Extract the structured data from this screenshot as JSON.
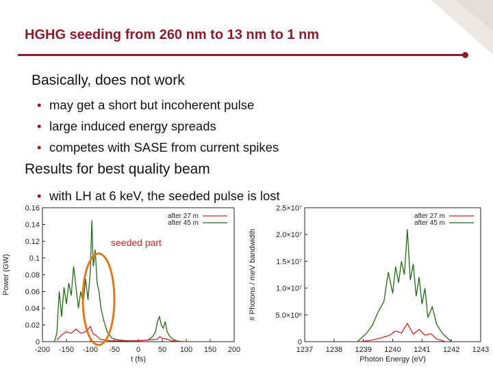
{
  "slide": {
    "title": "HGHG seeding from 260 nm to 13 nm to 1 nm",
    "heading1": "Basically, does not work",
    "bullets1": [
      "may get a short but incoherent pulse",
      "large induced energy spreads",
      "competes with SASE from current spikes"
    ],
    "heading2": "Results for best quality beam",
    "bullets2": [
      "with LH at 6 keV, the seeded pulse is lost"
    ]
  },
  "colors": {
    "accent": "#8b1a2b",
    "series_red": "#d62020",
    "series_green": "#1f6b12",
    "highlight": "#e07820"
  },
  "chart_data": [
    {
      "type": "line",
      "xlabel": "t (fs)",
      "ylabel": "Power (GW)",
      "xlim": [
        -200,
        200
      ],
      "ylim": [
        0,
        0.16
      ],
      "xticks": [
        "-200",
        "-150",
        "-100",
        "-50",
        "0",
        "50",
        "100",
        "150",
        "200"
      ],
      "yticks": [
        "0",
        "0.02",
        "0.04",
        "0.06",
        "0.08",
        "0.1",
        "0.12",
        "0.14",
        "0.16"
      ],
      "legend_position": "top-right",
      "annotation": "seeded part",
      "series": [
        {
          "name": "after 27 m",
          "color": "#d62020",
          "x": [
            -170,
            -160,
            -150,
            -140,
            -130,
            -120,
            -110,
            -100,
            -95,
            -90,
            -85,
            -80,
            -60,
            0,
            40,
            45,
            50,
            60,
            70,
            100
          ],
          "y": [
            0.002,
            0.008,
            0.012,
            0.01,
            0.015,
            0.01,
            0.012,
            0.018,
            0.01,
            0.008,
            0.006,
            0.003,
            0.001,
            0.001,
            0.003,
            0.006,
            0.004,
            0.003,
            0.001,
            0.0
          ]
        },
        {
          "name": "after 45 m",
          "color": "#1f6b12",
          "x": [
            -175,
            -170,
            -165,
            -160,
            -155,
            -150,
            -145,
            -140,
            -135,
            -130,
            -125,
            -120,
            -115,
            -110,
            -105,
            -100,
            -97,
            -94,
            -90,
            -86,
            -82,
            -78,
            -72,
            -65,
            -55,
            -40,
            -20,
            0,
            20,
            30,
            36,
            40,
            44,
            48,
            52,
            56,
            60,
            66,
            72,
            80,
            90
          ],
          "y": [
            0.0,
            0.01,
            0.06,
            0.03,
            0.065,
            0.045,
            0.07,
            0.055,
            0.09,
            0.065,
            0.04,
            0.06,
            0.045,
            0.075,
            0.05,
            0.085,
            0.145,
            0.09,
            0.11,
            0.07,
            0.06,
            0.04,
            0.025,
            0.012,
            0.004,
            0.002,
            0.001,
            0.001,
            0.002,
            0.006,
            0.012,
            0.024,
            0.03,
            0.02,
            0.016,
            0.024,
            0.012,
            0.006,
            0.003,
            0.001,
            0.0
          ]
        }
      ]
    },
    {
      "type": "line",
      "xlabel": "Photon Energy (eV)",
      "ylabel": "# Photons / meV bandwidth",
      "xlim": [
        1237,
        1243
      ],
      "ylim": [
        0,
        25000000
      ],
      "xticks": [
        "1237",
        "1238",
        "1239",
        "1240",
        "1241",
        "1242",
        "1243"
      ],
      "yticks": [
        "0",
        "5.0×10⁶",
        "1.0×10⁷",
        "1.5×10⁷",
        "2.0×10⁷",
        "2.5×10⁷"
      ],
      "legend_position": "top-right",
      "series": [
        {
          "name": "after 27 m",
          "color": "#d62020",
          "x": [
            1238.9,
            1239.3,
            1239.6,
            1239.9,
            1240.1,
            1240.3,
            1240.5,
            1240.7,
            1240.9,
            1241.1,
            1241.3,
            1241.5,
            1241.8
          ],
          "y": [
            0,
            300000,
            700000,
            1200000,
            2000000,
            1600000,
            3400000,
            1400000,
            2300000,
            1200000,
            1500000,
            500000,
            0
          ]
        },
        {
          "name": "after 45 m",
          "color": "#1f6b12",
          "x": [
            1238.8,
            1239.1,
            1239.3,
            1239.5,
            1239.7,
            1239.85,
            1240.0,
            1240.1,
            1240.2,
            1240.3,
            1240.4,
            1240.5,
            1240.6,
            1240.7,
            1240.8,
            1240.9,
            1241.0,
            1241.1,
            1241.2,
            1241.35,
            1241.5,
            1241.7,
            1242.0
          ],
          "y": [
            0,
            1500000,
            3000000,
            5500000,
            7500000,
            13000000,
            9000000,
            14000000,
            11000000,
            15000000,
            12500000,
            21000000,
            11500000,
            14500000,
            8500000,
            12000000,
            7000000,
            10000000,
            4500000,
            6500000,
            3200000,
            1500000,
            0
          ]
        }
      ]
    }
  ]
}
